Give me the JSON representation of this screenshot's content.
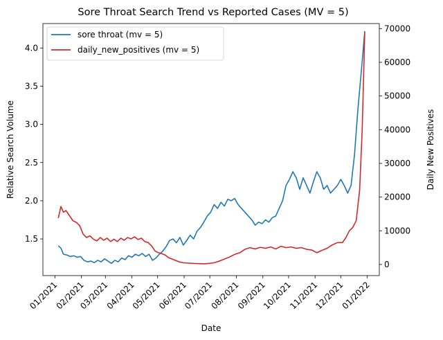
{
  "chart_data": {
    "type": "line",
    "title": "Sore Throat Search Trend vs Reported Cases (MV = 5)",
    "xlabel": "Date",
    "ylabel_left": "Relative Search Volume",
    "ylabel_right": "Daily New Positives",
    "x_tick_labels": [
      "01/2021",
      "02/2021",
      "03/2021",
      "04/2021",
      "05/2021",
      "06/2021",
      "07/2021",
      "08/2021",
      "09/2021",
      "10/2021",
      "11/2021",
      "12/2021",
      "01/2022"
    ],
    "x_ticks": [
      "2021-01-01",
      "2021-02-01",
      "2021-03-01",
      "2021-04-01",
      "2021-05-01",
      "2021-06-01",
      "2021-07-01",
      "2021-08-01",
      "2021-09-01",
      "2021-10-01",
      "2021-11-01",
      "2021-12-01",
      "2022-01-01"
    ],
    "xlim": [
      "2020-12-18",
      "2022-01-15"
    ],
    "ylim_left": [
      1.02,
      4.32
    ],
    "ylim_right": [
      -3300,
      71500
    ],
    "y_ticks_left": [
      1.5,
      2.0,
      2.5,
      3.0,
      3.5,
      4.0
    ],
    "y_ticks_right": [
      0,
      10000,
      20000,
      30000,
      40000,
      50000,
      60000,
      70000
    ],
    "grid": false,
    "legend_position": "top-left",
    "series": [
      {
        "name": "sore throat (mv = 5)",
        "axis": "left",
        "color": "#1f77b4",
        "points": [
          [
            "2021-01-05",
            1.41
          ],
          [
            "2021-01-08",
            1.38
          ],
          [
            "2021-01-11",
            1.3
          ],
          [
            "2021-01-15",
            1.29
          ],
          [
            "2021-01-19",
            1.27
          ],
          [
            "2021-01-23",
            1.28
          ],
          [
            "2021-01-27",
            1.26
          ],
          [
            "2021-01-31",
            1.27
          ],
          [
            "2021-02-04",
            1.22
          ],
          [
            "2021-02-08",
            1.2
          ],
          [
            "2021-02-12",
            1.21
          ],
          [
            "2021-02-16",
            1.19
          ],
          [
            "2021-02-20",
            1.22
          ],
          [
            "2021-02-24",
            1.2
          ],
          [
            "2021-02-28",
            1.24
          ],
          [
            "2021-03-04",
            1.21
          ],
          [
            "2021-03-08",
            1.18
          ],
          [
            "2021-03-12",
            1.22
          ],
          [
            "2021-03-16",
            1.2
          ],
          [
            "2021-03-20",
            1.25
          ],
          [
            "2021-03-24",
            1.23
          ],
          [
            "2021-03-28",
            1.28
          ],
          [
            "2021-04-01",
            1.26
          ],
          [
            "2021-04-05",
            1.3
          ],
          [
            "2021-04-09",
            1.28
          ],
          [
            "2021-04-13",
            1.31
          ],
          [
            "2021-04-17",
            1.27
          ],
          [
            "2021-04-21",
            1.3
          ],
          [
            "2021-04-25",
            1.22
          ],
          [
            "2021-04-29",
            1.25
          ],
          [
            "2021-05-03",
            1.3
          ],
          [
            "2021-05-07",
            1.34
          ],
          [
            "2021-05-11",
            1.4
          ],
          [
            "2021-05-15",
            1.48
          ],
          [
            "2021-05-19",
            1.5
          ],
          [
            "2021-05-23",
            1.45
          ],
          [
            "2021-05-27",
            1.52
          ],
          [
            "2021-05-31",
            1.42
          ],
          [
            "2021-06-04",
            1.48
          ],
          [
            "2021-06-08",
            1.55
          ],
          [
            "2021-06-12",
            1.5
          ],
          [
            "2021-06-16",
            1.6
          ],
          [
            "2021-06-20",
            1.65
          ],
          [
            "2021-06-24",
            1.72
          ],
          [
            "2021-06-28",
            1.8
          ],
          [
            "2021-07-02",
            1.85
          ],
          [
            "2021-07-06",
            1.95
          ],
          [
            "2021-07-10",
            1.9
          ],
          [
            "2021-07-14",
            1.98
          ],
          [
            "2021-07-18",
            1.93
          ],
          [
            "2021-07-22",
            2.02
          ],
          [
            "2021-07-26",
            2.0
          ],
          [
            "2021-07-30",
            2.03
          ],
          [
            "2021-08-03",
            1.95
          ],
          [
            "2021-08-07",
            1.9
          ],
          [
            "2021-08-11",
            1.85
          ],
          [
            "2021-08-15",
            1.8
          ],
          [
            "2021-08-19",
            1.75
          ],
          [
            "2021-08-23",
            1.68
          ],
          [
            "2021-08-27",
            1.72
          ],
          [
            "2021-08-31",
            1.7
          ],
          [
            "2021-09-04",
            1.75
          ],
          [
            "2021-09-08",
            1.72
          ],
          [
            "2021-09-12",
            1.78
          ],
          [
            "2021-09-16",
            1.8
          ],
          [
            "2021-09-20",
            1.9
          ],
          [
            "2021-09-24",
            2.0
          ],
          [
            "2021-09-28",
            2.2
          ],
          [
            "2021-10-02",
            2.28
          ],
          [
            "2021-10-06",
            2.38
          ],
          [
            "2021-10-10",
            2.3
          ],
          [
            "2021-10-14",
            2.15
          ],
          [
            "2021-10-18",
            2.3
          ],
          [
            "2021-10-22",
            2.2
          ],
          [
            "2021-10-26",
            2.1
          ],
          [
            "2021-10-30",
            2.25
          ],
          [
            "2021-11-03",
            2.38
          ],
          [
            "2021-11-07",
            2.3
          ],
          [
            "2021-11-11",
            2.15
          ],
          [
            "2021-11-15",
            2.2
          ],
          [
            "2021-11-19",
            2.1
          ],
          [
            "2021-11-23",
            2.15
          ],
          [
            "2021-11-27",
            2.2
          ],
          [
            "2021-12-01",
            2.28
          ],
          [
            "2021-12-05",
            2.2
          ],
          [
            "2021-12-09",
            2.1
          ],
          [
            "2021-12-13",
            2.2
          ],
          [
            "2021-12-17",
            2.6
          ],
          [
            "2021-12-21",
            3.2
          ],
          [
            "2021-12-25",
            3.7
          ],
          [
            "2021-12-29",
            4.22
          ]
        ]
      },
      {
        "name": "daily_new_positives (mv = 5)",
        "axis": "right",
        "color": "#d62728",
        "points": [
          [
            "2021-01-05",
            13800
          ],
          [
            "2021-01-08",
            17200
          ],
          [
            "2021-01-11",
            15500
          ],
          [
            "2021-01-14",
            16000
          ],
          [
            "2021-01-18",
            14500
          ],
          [
            "2021-01-22",
            13000
          ],
          [
            "2021-01-26",
            12500
          ],
          [
            "2021-01-30",
            11500
          ],
          [
            "2021-02-03",
            9000
          ],
          [
            "2021-02-07",
            8000
          ],
          [
            "2021-02-11",
            8500
          ],
          [
            "2021-02-15",
            7500
          ],
          [
            "2021-02-19",
            7000
          ],
          [
            "2021-02-23",
            8000
          ],
          [
            "2021-02-27",
            7200
          ],
          [
            "2021-03-03",
            7800
          ],
          [
            "2021-03-07",
            6800
          ],
          [
            "2021-03-11",
            7500
          ],
          [
            "2021-03-15",
            6800
          ],
          [
            "2021-03-19",
            7800
          ],
          [
            "2021-03-23",
            7200
          ],
          [
            "2021-03-27",
            8000
          ],
          [
            "2021-03-31",
            7600
          ],
          [
            "2021-04-04",
            8200
          ],
          [
            "2021-04-08",
            7400
          ],
          [
            "2021-04-12",
            7800
          ],
          [
            "2021-04-16",
            6800
          ],
          [
            "2021-04-20",
            6500
          ],
          [
            "2021-04-24",
            5500
          ],
          [
            "2021-04-28",
            4000
          ],
          [
            "2021-05-02",
            3500
          ],
          [
            "2021-05-06",
            3200
          ],
          [
            "2021-05-10",
            2800
          ],
          [
            "2021-05-14",
            2000
          ],
          [
            "2021-05-18",
            1600
          ],
          [
            "2021-05-22",
            1200
          ],
          [
            "2021-05-26",
            800
          ],
          [
            "2021-05-31",
            500
          ],
          [
            "2021-06-06",
            400
          ],
          [
            "2021-06-12",
            300
          ],
          [
            "2021-06-18",
            250
          ],
          [
            "2021-06-24",
            200
          ],
          [
            "2021-06-30",
            300
          ],
          [
            "2021-07-06",
            500
          ],
          [
            "2021-07-12",
            1000
          ],
          [
            "2021-07-18",
            1600
          ],
          [
            "2021-07-24",
            2200
          ],
          [
            "2021-07-30",
            3000
          ],
          [
            "2021-08-05",
            3500
          ],
          [
            "2021-08-11",
            4500
          ],
          [
            "2021-08-17",
            5000
          ],
          [
            "2021-08-23",
            4600
          ],
          [
            "2021-08-29",
            5100
          ],
          [
            "2021-09-04",
            4800
          ],
          [
            "2021-09-10",
            5200
          ],
          [
            "2021-09-16",
            4600
          ],
          [
            "2021-09-22",
            5400
          ],
          [
            "2021-09-28",
            5000
          ],
          [
            "2021-10-04",
            5200
          ],
          [
            "2021-10-10",
            4800
          ],
          [
            "2021-10-16",
            5000
          ],
          [
            "2021-10-22",
            4500
          ],
          [
            "2021-10-28",
            4300
          ],
          [
            "2021-11-03",
            3500
          ],
          [
            "2021-11-09",
            4200
          ],
          [
            "2021-11-15",
            4800
          ],
          [
            "2021-11-21",
            5800
          ],
          [
            "2021-11-27",
            6500
          ],
          [
            "2021-12-03",
            6500
          ],
          [
            "2021-12-07",
            8000
          ],
          [
            "2021-12-11",
            10000
          ],
          [
            "2021-12-15",
            11000
          ],
          [
            "2021-12-19",
            13000
          ],
          [
            "2021-12-23",
            22000
          ],
          [
            "2021-12-26",
            40000
          ],
          [
            "2021-12-29",
            69000
          ]
        ]
      }
    ]
  }
}
